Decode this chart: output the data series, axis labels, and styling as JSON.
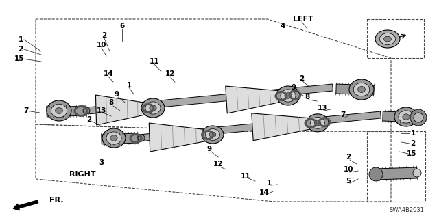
{
  "bg_color": "#ffffff",
  "line_color": "#000000",
  "dark_color": "#333333",
  "diagram_id": "SWA4B2031",
  "left_label": "LEFT",
  "right_label": "RIGHT",
  "fr_label": "FR."
}
